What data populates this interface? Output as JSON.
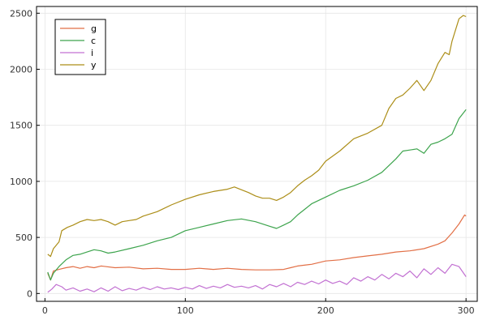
{
  "chart_data": {
    "type": "line",
    "title": "",
    "xlabel": "",
    "ylabel": "",
    "xlim": [
      -6,
      308
    ],
    "ylim": [
      -70,
      2560
    ],
    "xticks": [
      0,
      100,
      200,
      300
    ],
    "yticks": [
      0,
      500,
      1000,
      1500,
      2000,
      2500
    ],
    "grid": true,
    "legend": "top-left",
    "series": [
      {
        "name": "g",
        "color": "#e26f46",
        "points": [
          [
            2,
            180
          ],
          [
            4,
            120
          ],
          [
            6,
            200
          ],
          [
            10,
            215
          ],
          [
            15,
            230
          ],
          [
            20,
            240
          ],
          [
            25,
            225
          ],
          [
            30,
            240
          ],
          [
            35,
            230
          ],
          [
            40,
            245
          ],
          [
            50,
            230
          ],
          [
            60,
            235
          ],
          [
            70,
            220
          ],
          [
            80,
            225
          ],
          [
            90,
            215
          ],
          [
            100,
            215
          ],
          [
            110,
            225
          ],
          [
            120,
            215
          ],
          [
            130,
            225
          ],
          [
            140,
            215
          ],
          [
            150,
            210
          ],
          [
            160,
            210
          ],
          [
            170,
            215
          ],
          [
            175,
            230
          ],
          [
            180,
            245
          ],
          [
            190,
            260
          ],
          [
            200,
            290
          ],
          [
            210,
            300
          ],
          [
            220,
            320
          ],
          [
            230,
            335
          ],
          [
            240,
            350
          ],
          [
            250,
            370
          ],
          [
            260,
            380
          ],
          [
            270,
            400
          ],
          [
            280,
            440
          ],
          [
            285,
            470
          ],
          [
            290,
            540
          ],
          [
            295,
            620
          ],
          [
            299,
            700
          ],
          [
            300,
            690
          ]
        ]
      },
      {
        "name": "c",
        "color": "#3da44d",
        "points": [
          [
            2,
            190
          ],
          [
            4,
            120
          ],
          [
            6,
            180
          ],
          [
            10,
            240
          ],
          [
            15,
            300
          ],
          [
            20,
            340
          ],
          [
            25,
            350
          ],
          [
            30,
            370
          ],
          [
            35,
            390
          ],
          [
            40,
            380
          ],
          [
            45,
            360
          ],
          [
            50,
            370
          ],
          [
            60,
            400
          ],
          [
            70,
            430
          ],
          [
            80,
            470
          ],
          [
            90,
            500
          ],
          [
            100,
            560
          ],
          [
            110,
            590
          ],
          [
            120,
            620
          ],
          [
            130,
            650
          ],
          [
            140,
            665
          ],
          [
            150,
            640
          ],
          [
            160,
            600
          ],
          [
            165,
            580
          ],
          [
            170,
            610
          ],
          [
            175,
            640
          ],
          [
            180,
            700
          ],
          [
            185,
            750
          ],
          [
            190,
            800
          ],
          [
            200,
            860
          ],
          [
            210,
            920
          ],
          [
            220,
            960
          ],
          [
            230,
            1010
          ],
          [
            240,
            1080
          ],
          [
            250,
            1200
          ],
          [
            255,
            1270
          ],
          [
            260,
            1280
          ],
          [
            265,
            1290
          ],
          [
            270,
            1250
          ],
          [
            275,
            1330
          ],
          [
            280,
            1350
          ],
          [
            285,
            1380
          ],
          [
            290,
            1420
          ],
          [
            295,
            1560
          ],
          [
            300,
            1640
          ]
        ]
      },
      {
        "name": "i",
        "color": "#c271d2",
        "points": [
          [
            2,
            10
          ],
          [
            5,
            40
          ],
          [
            8,
            80
          ],
          [
            12,
            60
          ],
          [
            15,
            30
          ],
          [
            20,
            50
          ],
          [
            25,
            20
          ],
          [
            30,
            40
          ],
          [
            35,
            15
          ],
          [
            40,
            50
          ],
          [
            45,
            20
          ],
          [
            50,
            60
          ],
          [
            55,
            25
          ],
          [
            60,
            45
          ],
          [
            65,
            30
          ],
          [
            70,
            55
          ],
          [
            75,
            35
          ],
          [
            80,
            60
          ],
          [
            85,
            40
          ],
          [
            90,
            50
          ],
          [
            95,
            35
          ],
          [
            100,
            55
          ],
          [
            105,
            40
          ],
          [
            110,
            70
          ],
          [
            115,
            45
          ],
          [
            120,
            65
          ],
          [
            125,
            50
          ],
          [
            130,
            80
          ],
          [
            135,
            55
          ],
          [
            140,
            65
          ],
          [
            145,
            50
          ],
          [
            150,
            70
          ],
          [
            155,
            40
          ],
          [
            160,
            80
          ],
          [
            165,
            60
          ],
          [
            170,
            90
          ],
          [
            175,
            60
          ],
          [
            180,
            100
          ],
          [
            185,
            80
          ],
          [
            190,
            110
          ],
          [
            195,
            85
          ],
          [
            200,
            120
          ],
          [
            205,
            90
          ],
          [
            210,
            110
          ],
          [
            215,
            80
          ],
          [
            220,
            140
          ],
          [
            225,
            110
          ],
          [
            230,
            150
          ],
          [
            235,
            120
          ],
          [
            240,
            170
          ],
          [
            245,
            130
          ],
          [
            250,
            180
          ],
          [
            255,
            150
          ],
          [
            260,
            200
          ],
          [
            265,
            140
          ],
          [
            270,
            220
          ],
          [
            275,
            170
          ],
          [
            280,
            230
          ],
          [
            285,
            180
          ],
          [
            290,
            260
          ],
          [
            295,
            240
          ],
          [
            300,
            150
          ]
        ]
      },
      {
        "name": "y",
        "color": "#ac8e18",
        "points": [
          [
            2,
            350
          ],
          [
            4,
            330
          ],
          [
            6,
            400
          ],
          [
            10,
            460
          ],
          [
            12,
            560
          ],
          [
            16,
            590
          ],
          [
            20,
            610
          ],
          [
            25,
            640
          ],
          [
            30,
            660
          ],
          [
            35,
            650
          ],
          [
            40,
            660
          ],
          [
            45,
            640
          ],
          [
            50,
            610
          ],
          [
            55,
            640
          ],
          [
            60,
            650
          ],
          [
            65,
            660
          ],
          [
            70,
            690
          ],
          [
            80,
            730
          ],
          [
            90,
            790
          ],
          [
            100,
            840
          ],
          [
            110,
            880
          ],
          [
            120,
            910
          ],
          [
            130,
            930
          ],
          [
            135,
            950
          ],
          [
            140,
            925
          ],
          [
            145,
            900
          ],
          [
            150,
            870
          ],
          [
            155,
            850
          ],
          [
            160,
            850
          ],
          [
            165,
            830
          ],
          [
            170,
            860
          ],
          [
            175,
            900
          ],
          [
            180,
            960
          ],
          [
            185,
            1010
          ],
          [
            190,
            1050
          ],
          [
            195,
            1100
          ],
          [
            200,
            1180
          ],
          [
            210,
            1270
          ],
          [
            220,
            1380
          ],
          [
            230,
            1430
          ],
          [
            240,
            1500
          ],
          [
            245,
            1650
          ],
          [
            250,
            1740
          ],
          [
            255,
            1770
          ],
          [
            260,
            1830
          ],
          [
            265,
            1900
          ],
          [
            270,
            1810
          ],
          [
            275,
            1900
          ],
          [
            280,
            2050
          ],
          [
            285,
            2150
          ],
          [
            288,
            2130
          ],
          [
            290,
            2250
          ],
          [
            295,
            2450
          ],
          [
            298,
            2480
          ],
          [
            300,
            2470
          ]
        ]
      }
    ]
  }
}
